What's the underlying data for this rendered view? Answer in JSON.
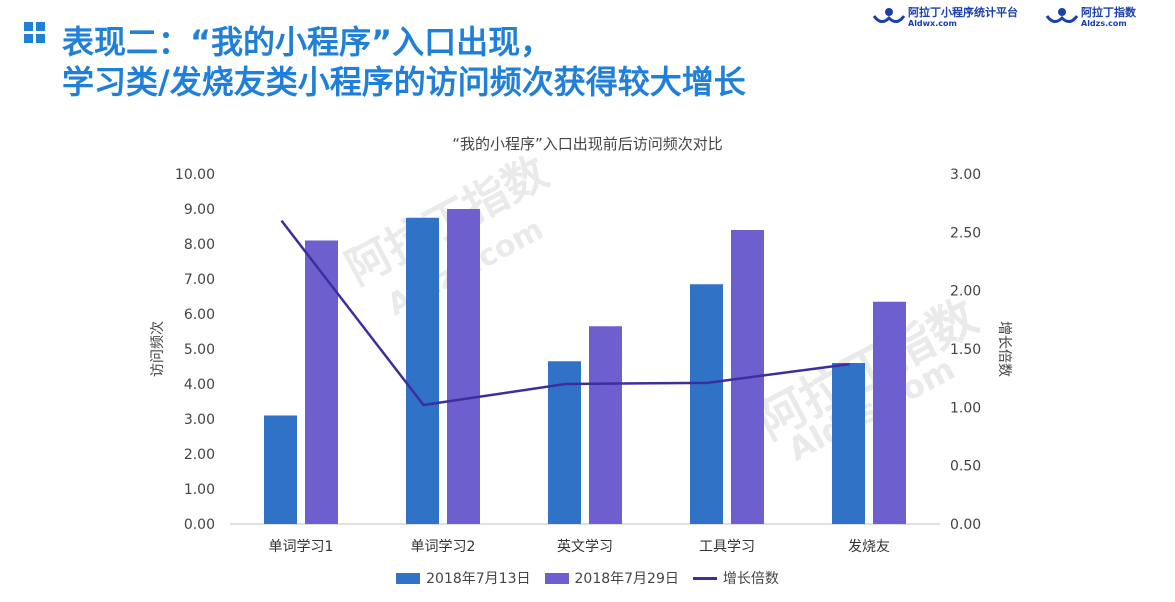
{
  "header": {
    "title_line1": "表现二：“我的小程序”入口出现，",
    "title_line2": "学习类/发烧友类小程序的访问频次获得较大增长"
  },
  "brands": [
    {
      "cn": "阿拉丁小程序统计平台",
      "en": "Aldwx.com"
    },
    {
      "cn": "阿拉丁指数",
      "en": "Aldzs.com"
    }
  ],
  "watermark": {
    "cn": "阿拉丁指数",
    "en": "Aldzs.com"
  },
  "colors": {
    "title": "#1f7fd9",
    "series1": "#2f72c6",
    "series2": "#6e5fce",
    "line": "#3b2fa0"
  },
  "chart_data": {
    "type": "bar",
    "title": "“我的小程序”入口出现前后访问频次对比",
    "categories": [
      "单词学习1",
      "单词学习2",
      "英文学习",
      "工具学习",
      "发烧友"
    ],
    "ylabel": "访问频次",
    "y2label": "增长倍数",
    "ylim": [
      0,
      10
    ],
    "y2lim": [
      0,
      3
    ],
    "yticks": [
      "0.00",
      "1.00",
      "2.00",
      "3.00",
      "4.00",
      "5.00",
      "6.00",
      "7.00",
      "8.00",
      "9.00",
      "10.00"
    ],
    "y2ticks": [
      "0.00",
      "0.50",
      "1.00",
      "1.50",
      "2.00",
      "2.50",
      "3.00"
    ],
    "series": [
      {
        "name": "2018年7月13日",
        "type": "bar",
        "axis": "left",
        "values": [
          3.1,
          8.75,
          4.65,
          6.85,
          4.6
        ],
        "color": "#2f72c6"
      },
      {
        "name": "2018年7月29日",
        "type": "bar",
        "axis": "left",
        "values": [
          8.1,
          9.0,
          5.65,
          8.4,
          6.35
        ],
        "color": "#6e5fce"
      },
      {
        "name": "增长倍数",
        "type": "line",
        "axis": "right",
        "values": [
          2.6,
          1.02,
          1.2,
          1.21,
          1.37
        ],
        "color": "#3b2fa0"
      }
    ],
    "legend": "bottom",
    "grid": false
  }
}
